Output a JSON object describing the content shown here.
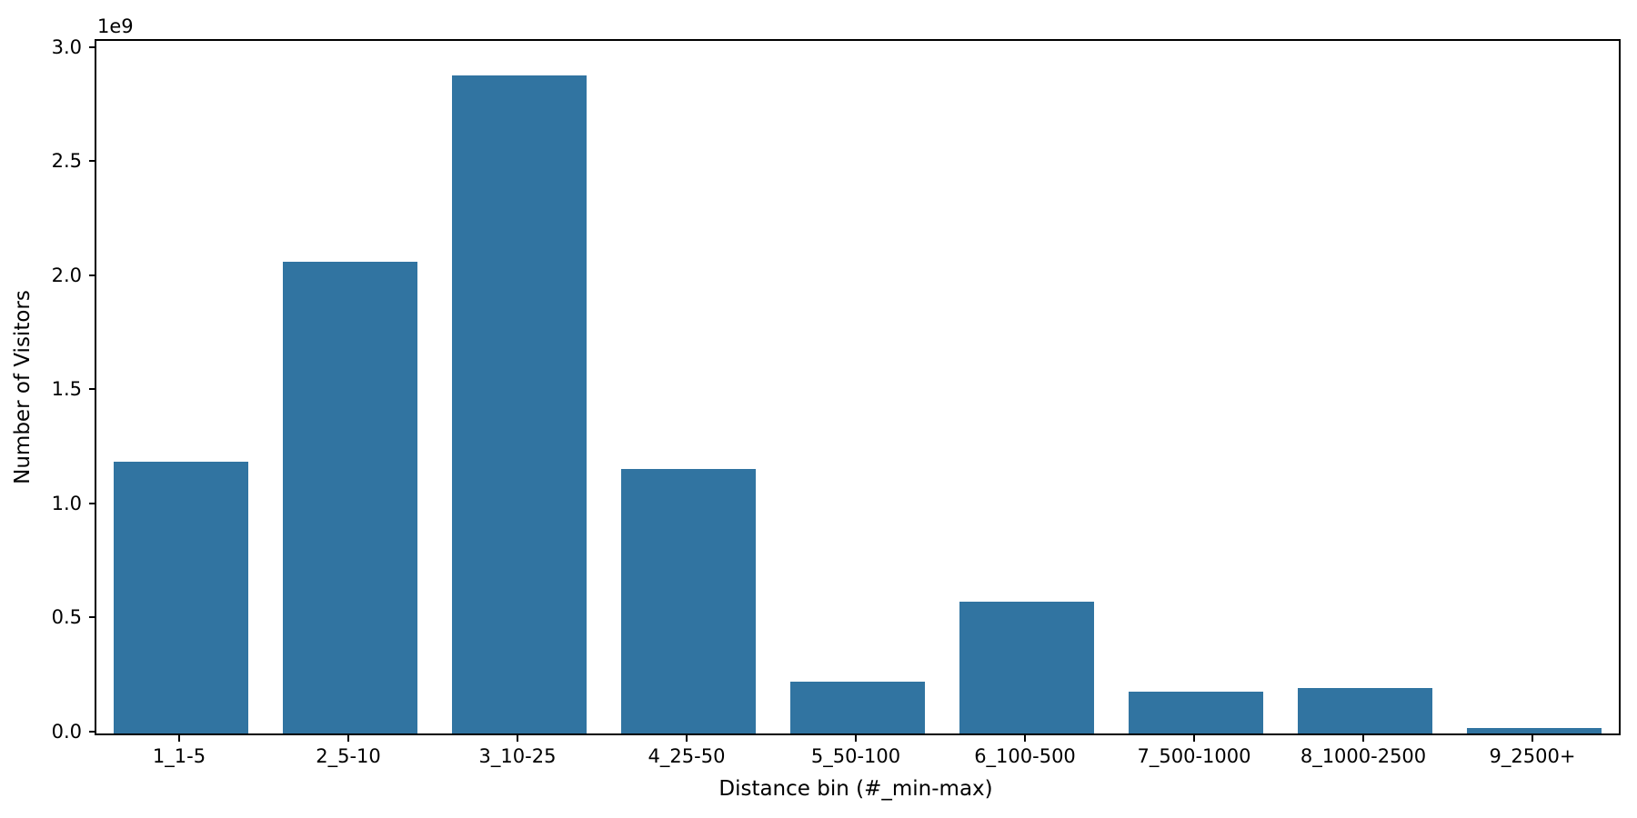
{
  "chart_data": {
    "type": "bar",
    "title": "",
    "xlabel": "Distance bin (#_min-max)",
    "ylabel": "Number of Visitors",
    "offset_text": "1e9",
    "categories": [
      "1_1-5",
      "2_5-10",
      "3_10-25",
      "4_25-50",
      "5_50-100",
      "6_100-500",
      "7_500-1000",
      "8_1000-2500",
      "9_2500+"
    ],
    "values": [
      1190000000,
      2068000000,
      2884000000,
      1159000000,
      227000000,
      578000000,
      183000000,
      199000000,
      24000000
    ],
    "ylim": [
      0,
      3035000000
    ],
    "yticks": [
      0,
      500000000,
      1000000000,
      1500000000,
      2000000000,
      2500000000,
      3000000000
    ],
    "ytick_labels": [
      "0.0",
      "0.5",
      "1.0",
      "1.5",
      "2.0",
      "2.5",
      "3.0"
    ],
    "bar_color": "#3174a1",
    "axis_color": "#000000",
    "background_color": "#ffffff",
    "grid": false,
    "legend": null,
    "bar_width_fraction": 0.8
  }
}
